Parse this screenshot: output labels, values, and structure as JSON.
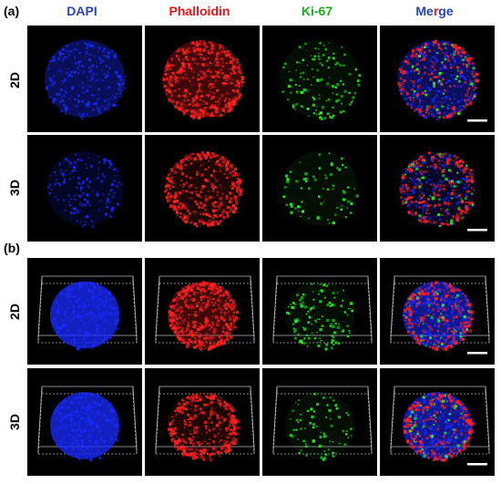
{
  "panels": {
    "a": "(a)",
    "b": "(b)"
  },
  "columns": [
    {
      "label": "DAPI",
      "color": "#2846b8"
    },
    {
      "label": "Phalloidin",
      "color": "#e8151b"
    },
    {
      "label": "Ki-67",
      "color": "#1cae1c"
    },
    {
      "label_parts": [
        "Me",
        "r",
        "ge"
      ],
      "colors": [
        "#2846b8",
        "#e8151b",
        "#2846b8"
      ]
    }
  ],
  "rows": {
    "r1": "2D",
    "r2": "3D"
  },
  "colors": {
    "dapi": "#1a2bff",
    "phalloidin": "#ff2020",
    "ki67": "#22ff22",
    "scalebar": "#ffffff",
    "background": "#000000"
  }
}
